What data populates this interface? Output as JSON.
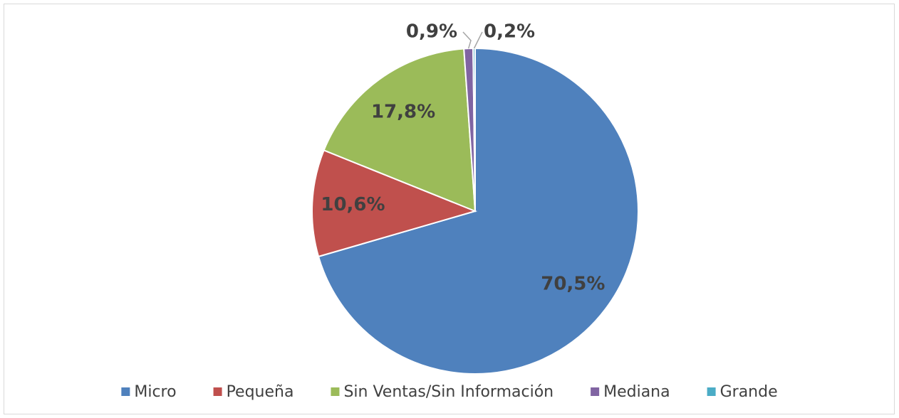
{
  "chart_data": {
    "type": "pie",
    "categories": [
      "Micro",
      "Pequeña",
      "Sin Ventas/Sin Información",
      "Mediana",
      "Grande"
    ],
    "values": [
      70.5,
      10.6,
      17.8,
      0.9,
      0.2
    ],
    "value_labels": [
      "70,5%",
      "10,6%",
      "17,8%",
      "0,9%",
      "0,2%"
    ],
    "colors": [
      "#4f81bd",
      "#c0504d",
      "#9bbb59",
      "#8064a2",
      "#4bacc6"
    ],
    "legend": "bottom"
  }
}
